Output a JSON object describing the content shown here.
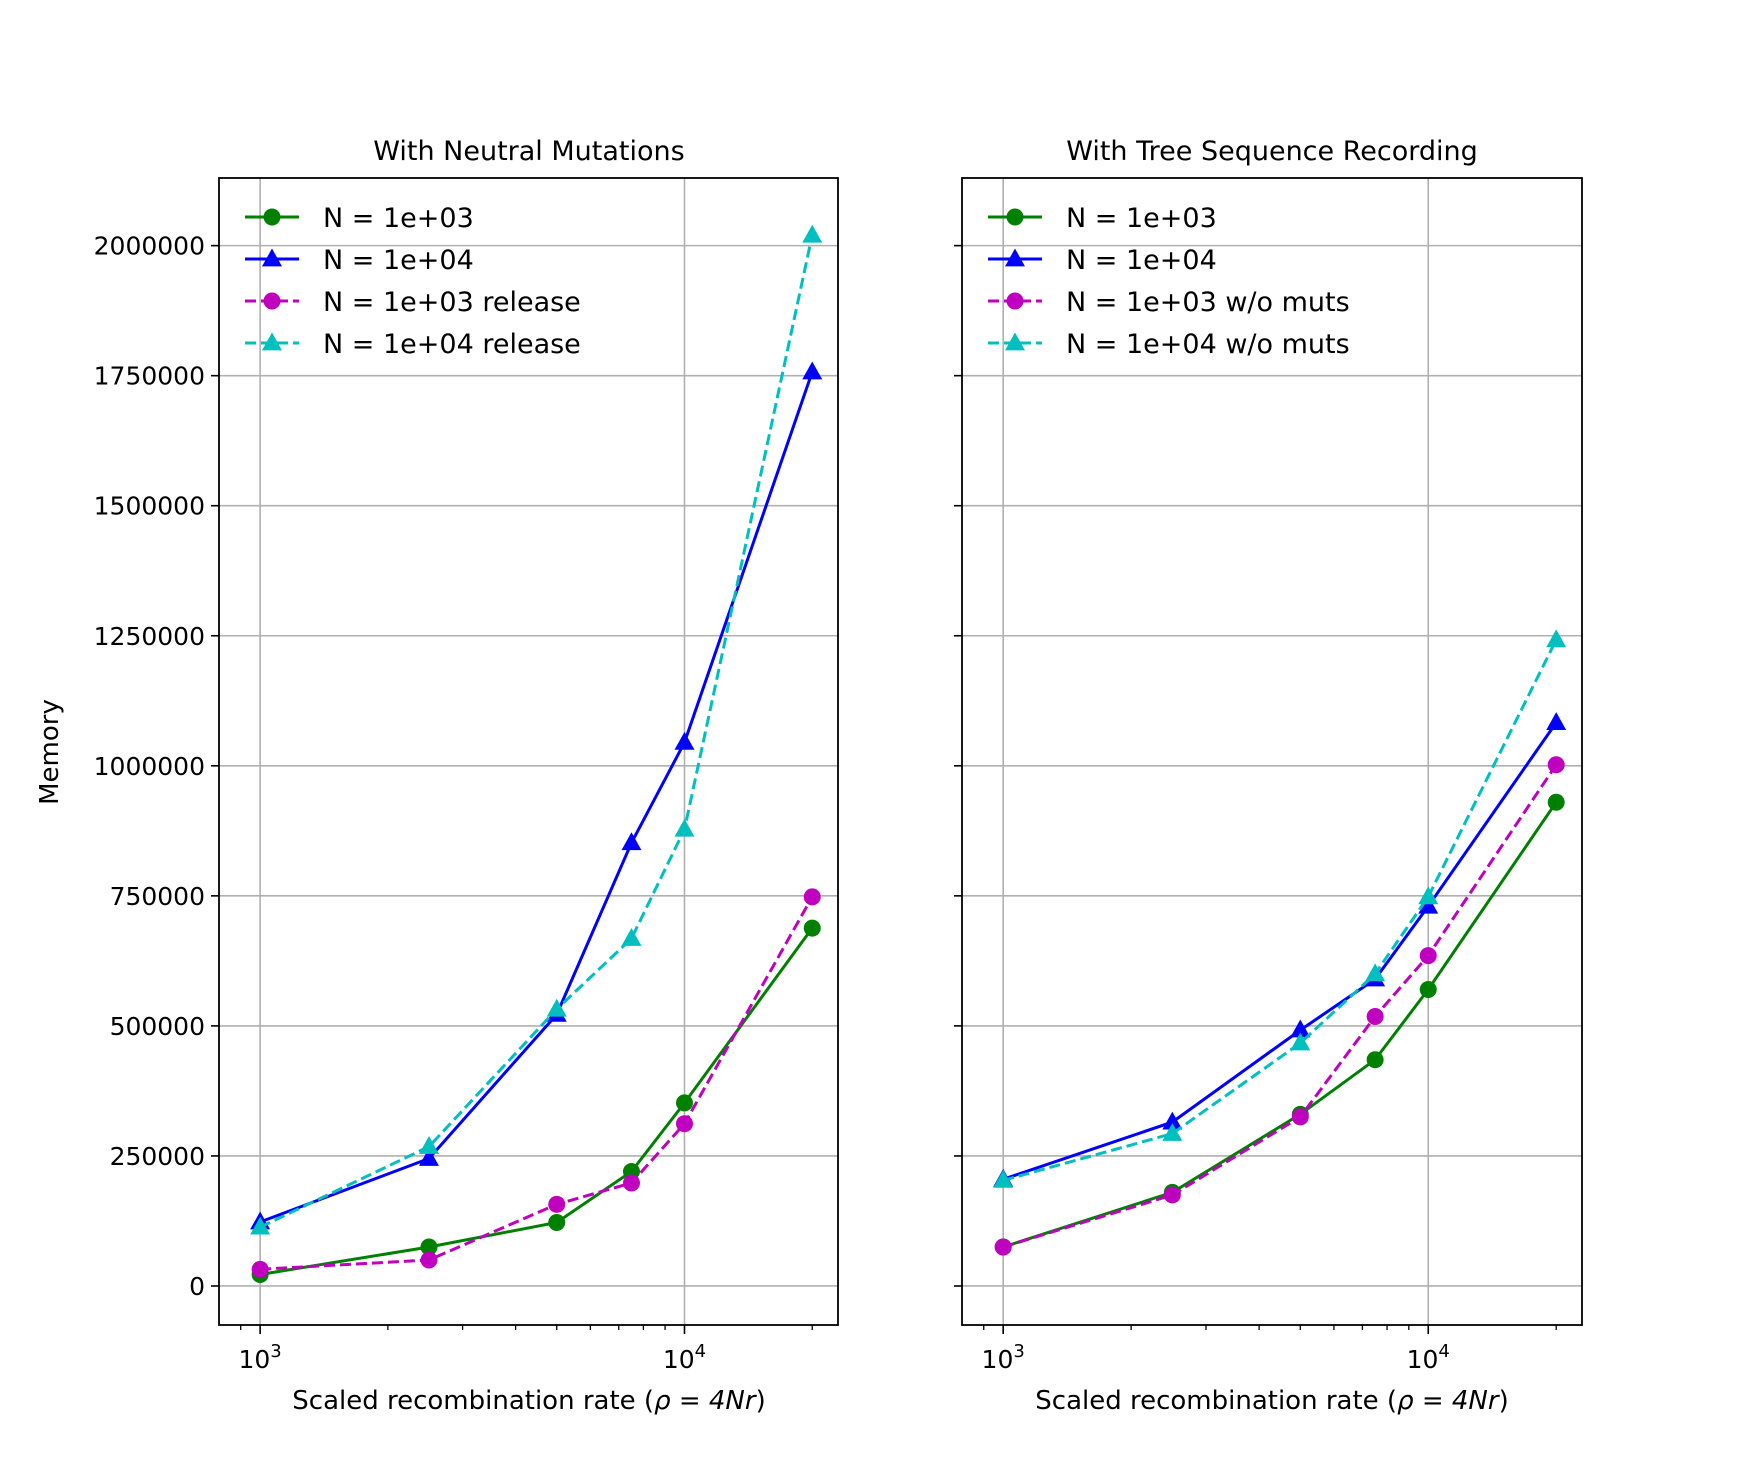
{
  "chart_data": [
    {
      "type": "line",
      "title": "With Neutral Mutations",
      "xlabel_text": "Scaled recombination rate (",
      "xlabel_math": "ρ = 4Nr",
      "xlabel_close": ")",
      "ylabel": "Memory",
      "xscale": "log",
      "xlim": [
        800,
        23000
      ],
      "ylim": [
        -75000,
        2130000
      ],
      "grid": true,
      "legend_position": "upper-left",
      "x_ticks": [
        {
          "base": "10",
          "exp": "3",
          "value": 1000
        },
        {
          "base": "10",
          "exp": "4",
          "value": 10000
        }
      ],
      "y_ticks": [
        "0",
        "250000",
        "500000",
        "750000",
        "1000000",
        "1250000",
        "1500000",
        "1750000",
        "2000000"
      ],
      "x": [
        1000,
        2500,
        5000,
        7500,
        10000,
        20000
      ],
      "series": [
        {
          "name": "N = 1e+03",
          "color": "#008000",
          "style": "solid",
          "marker": "circle",
          "values": [
            22000,
            75000,
            122000,
            220000,
            352000,
            688000
          ]
        },
        {
          "name": "N = 1e+04",
          "color": "#0000ff",
          "style": "solid",
          "marker": "triangle",
          "values": [
            123000,
            245000,
            522000,
            852000,
            1045000,
            1757000
          ]
        },
        {
          "name": "N = 1e+03 release",
          "color": "#bf00bf",
          "style": "dashed",
          "marker": "circle",
          "values": [
            32000,
            50000,
            157000,
            198000,
            312000,
            748000
          ]
        },
        {
          "name": "N = 1e+04 release",
          "color": "#00bfbf",
          "style": "dashed",
          "marker": "triangle",
          "values": [
            113000,
            268000,
            532000,
            668000,
            878000,
            2020000
          ]
        }
      ]
    },
    {
      "type": "line",
      "title": "With Tree Sequence Recording",
      "xlabel_text": "Scaled recombination rate (",
      "xlabel_math": "ρ = 4Nr",
      "xlabel_close": ")",
      "ylabel": "",
      "xscale": "log",
      "xlim": [
        800,
        23000
      ],
      "ylim": [
        -75000,
        2130000
      ],
      "grid": true,
      "legend_position": "upper-left",
      "x_ticks": [
        {
          "base": "10",
          "exp": "3",
          "value": 1000
        },
        {
          "base": "10",
          "exp": "4",
          "value": 10000
        }
      ],
      "y_ticks": [],
      "x": [
        1000,
        2500,
        5000,
        7500,
        10000,
        20000
      ],
      "series": [
        {
          "name": "N = 1e+03",
          "color": "#008000",
          "style": "solid",
          "marker": "circle",
          "values": [
            75000,
            180000,
            330000,
            435000,
            570000,
            930000
          ]
        },
        {
          "name": "N = 1e+04",
          "color": "#0000ff",
          "style": "solid",
          "marker": "triangle",
          "values": [
            205000,
            315000,
            492000,
            590000,
            730000,
            1083000
          ]
        },
        {
          "name": "N = 1e+03 w/o muts",
          "color": "#bf00bf",
          "style": "dashed",
          "marker": "circle",
          "values": [
            75000,
            175000,
            325000,
            518000,
            635000,
            1002000
          ]
        },
        {
          "name": "N = 1e+04 w/o muts",
          "color": "#00bfbf",
          "style": "dashed",
          "marker": "triangle",
          "values": [
            203000,
            293000,
            467000,
            600000,
            748000,
            1242000
          ]
        }
      ]
    }
  ]
}
